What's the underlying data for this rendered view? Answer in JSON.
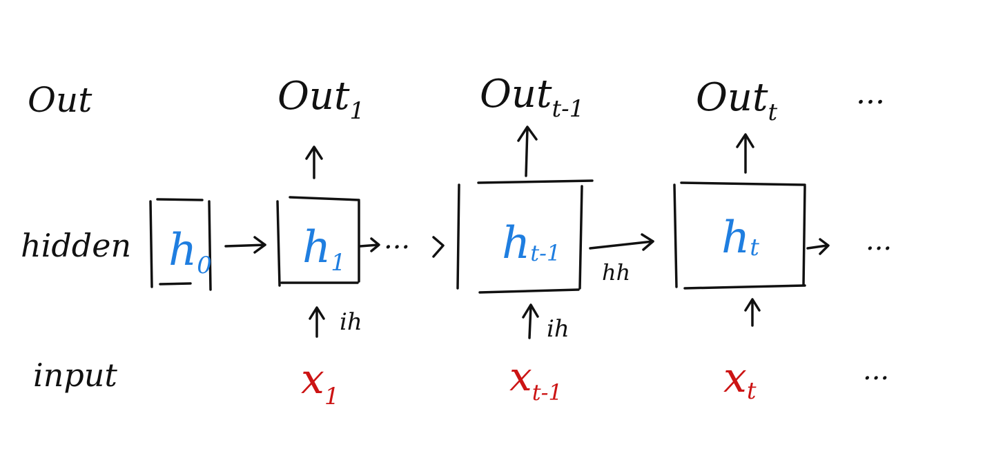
{
  "rows": {
    "out": "Out",
    "hidden": "hidden",
    "input": "input"
  },
  "outputs": [
    {
      "base": "Out",
      "sub": "1"
    },
    {
      "base": "Out",
      "sub": "t-1"
    },
    {
      "base": "Out",
      "sub": "t"
    }
  ],
  "hidden_states": [
    {
      "base": "h",
      "sub": "0"
    },
    {
      "base": "h",
      "sub": "1"
    },
    {
      "base": "h",
      "sub": "t-1"
    },
    {
      "base": "h",
      "sub": "t"
    }
  ],
  "inputs": [
    {
      "base": "x",
      "sub": "1"
    },
    {
      "base": "x",
      "sub": "t-1"
    },
    {
      "base": "x",
      "sub": "t"
    }
  ],
  "edge_labels": {
    "ih_1": "ih",
    "ih_t1": "ih",
    "hh": "hh"
  },
  "ellipsis": {
    "out": "...",
    "hidden_mid": "...",
    "hidden_end": "...",
    "input": "..."
  },
  "colors": {
    "ink": "#111111",
    "hidden_text": "#1f7ee0",
    "input_text": "#cc1414"
  }
}
